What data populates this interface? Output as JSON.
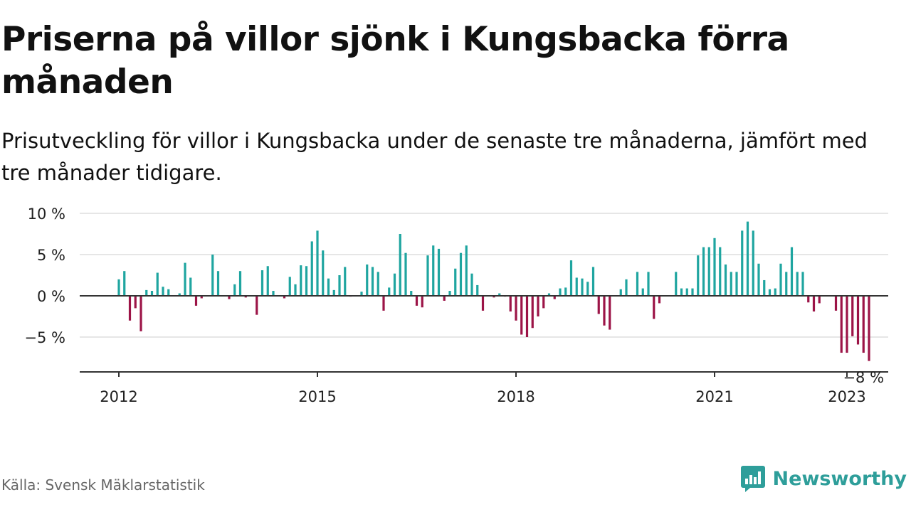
{
  "title": "Priserna på villor sjönk i Kungsbacka förra månaden",
  "subtitle": "Prisutveckling för villor i Kungsbacka under de senaste tre månaderna, jämfört med tre månader tidigare.",
  "source": "Källa: Svensk Mäklarstatistik",
  "brand": "Newsworthy",
  "colors": {
    "positive": "#1fa5a0",
    "negative": "#9c1447",
    "grid": "#dddddd",
    "axis": "#333333",
    "brand": "#2e9e9a"
  },
  "chart_data": {
    "type": "bar",
    "title": "",
    "xlabel": "",
    "ylabel": "",
    "ylim": [
      -9,
      10
    ],
    "yticks": [
      10,
      5,
      0,
      -5
    ],
    "ytick_labels": [
      "10 %",
      "5 %",
      "0 %",
      "−5 %"
    ],
    "xticks": [
      "2012",
      "2015",
      "2018",
      "2021",
      "2023"
    ],
    "grid": true,
    "start": "2012-01",
    "frequency": "monthly",
    "annotation": {
      "text": "−8 %",
      "month": "2023-04"
    },
    "values": [
      2.0,
      3.0,
      -3.0,
      -1.5,
      -4.3,
      0.7,
      0.6,
      2.8,
      1.1,
      0.8,
      0.0,
      0.3,
      4.0,
      2.2,
      -1.2,
      -0.3,
      0.0,
      5.0,
      3.0,
      0.0,
      -0.4,
      1.4,
      3.0,
      -0.2,
      0.0,
      -2.3,
      3.1,
      3.6,
      0.6,
      0.0,
      -0.3,
      2.3,
      1.4,
      3.7,
      3.6,
      6.6,
      7.9,
      5.5,
      2.1,
      0.7,
      2.5,
      3.5,
      -0.1,
      0.0,
      0.5,
      3.8,
      3.5,
      2.9,
      -1.8,
      1.0,
      2.7,
      7.5,
      5.2,
      0.6,
      -1.2,
      -1.4,
      4.9,
      6.1,
      5.7,
      -0.6,
      0.6,
      3.3,
      5.2,
      6.1,
      2.7,
      1.3,
      -1.8,
      0.0,
      -0.2,
      0.3,
      -0.1,
      -1.9,
      -3.0,
      -4.7,
      -5.0,
      -3.9,
      -2.5,
      -1.5,
      0.3,
      -0.4,
      0.9,
      1.0,
      4.3,
      2.2,
      2.1,
      1.7,
      3.5,
      -2.2,
      -3.6,
      -4.1,
      0.0,
      0.8,
      2.0,
      0.0,
      2.9,
      0.9,
      2.9,
      -2.8,
      -0.9,
      0.0,
      0.0,
      2.9,
      0.9,
      0.9,
      0.9,
      4.9,
      5.9,
      5.9,
      7.0,
      5.9,
      3.8,
      2.9,
      2.9,
      7.9,
      9.0,
      7.9,
      3.9,
      1.9,
      0.8,
      0.9,
      3.9,
      2.9,
      5.9,
      2.9,
      2.9,
      -0.8,
      -1.9,
      -0.9,
      0.0,
      0.0,
      -1.8,
      -6.9,
      -6.9,
      -4.9,
      -5.9,
      -6.9,
      -7.9
    ]
  }
}
